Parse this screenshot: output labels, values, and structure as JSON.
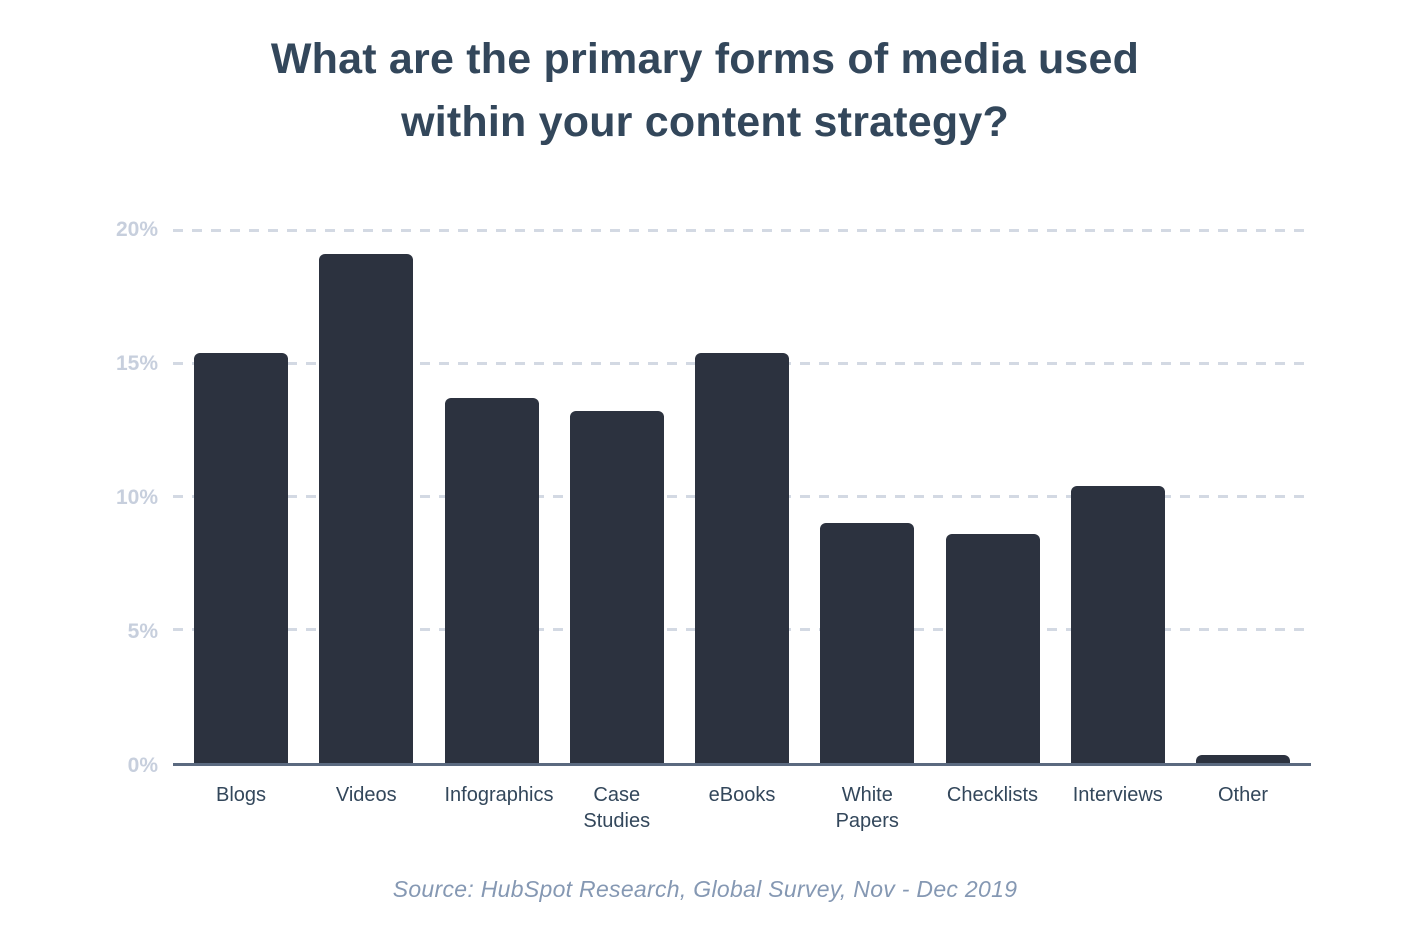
{
  "title": {
    "line1": "What are the primary forms of media used",
    "line2": "within your content strategy?"
  },
  "source": "Source: HubSpot Research, Global Survey, Nov - Dec 2019",
  "chart_data": {
    "type": "bar",
    "title": "What are the primary forms of media used within your content strategy?",
    "categories": [
      "Blogs",
      "Videos",
      "Infographics",
      "Case Studies",
      "eBooks",
      "White Papers",
      "Checklists",
      "Interviews",
      "Other"
    ],
    "values": [
      15.4,
      19.1,
      13.7,
      13.2,
      15.4,
      9.0,
      8.6,
      10.4,
      0.3
    ],
    "xlabel": "",
    "ylabel": "",
    "ylim": [
      0,
      20
    ],
    "ytick_values": [
      20,
      15,
      10,
      5,
      0
    ],
    "ytick_labels": [
      "20%",
      "15%",
      "10%",
      "5%",
      "0%"
    ],
    "grid": "horizontal-dashed",
    "legend": "none",
    "annotation": "Source: HubSpot Research, Global Survey, Nov - Dec 2019"
  },
  "colors": {
    "title": "#33475b",
    "bar": "#2c323f",
    "y_tick": "#c7cfdd",
    "gridline": "#d3d9e3",
    "baseline": "#5b6a80",
    "x_label": "#33475b",
    "source": "#8598b3",
    "background": "#ffffff"
  }
}
